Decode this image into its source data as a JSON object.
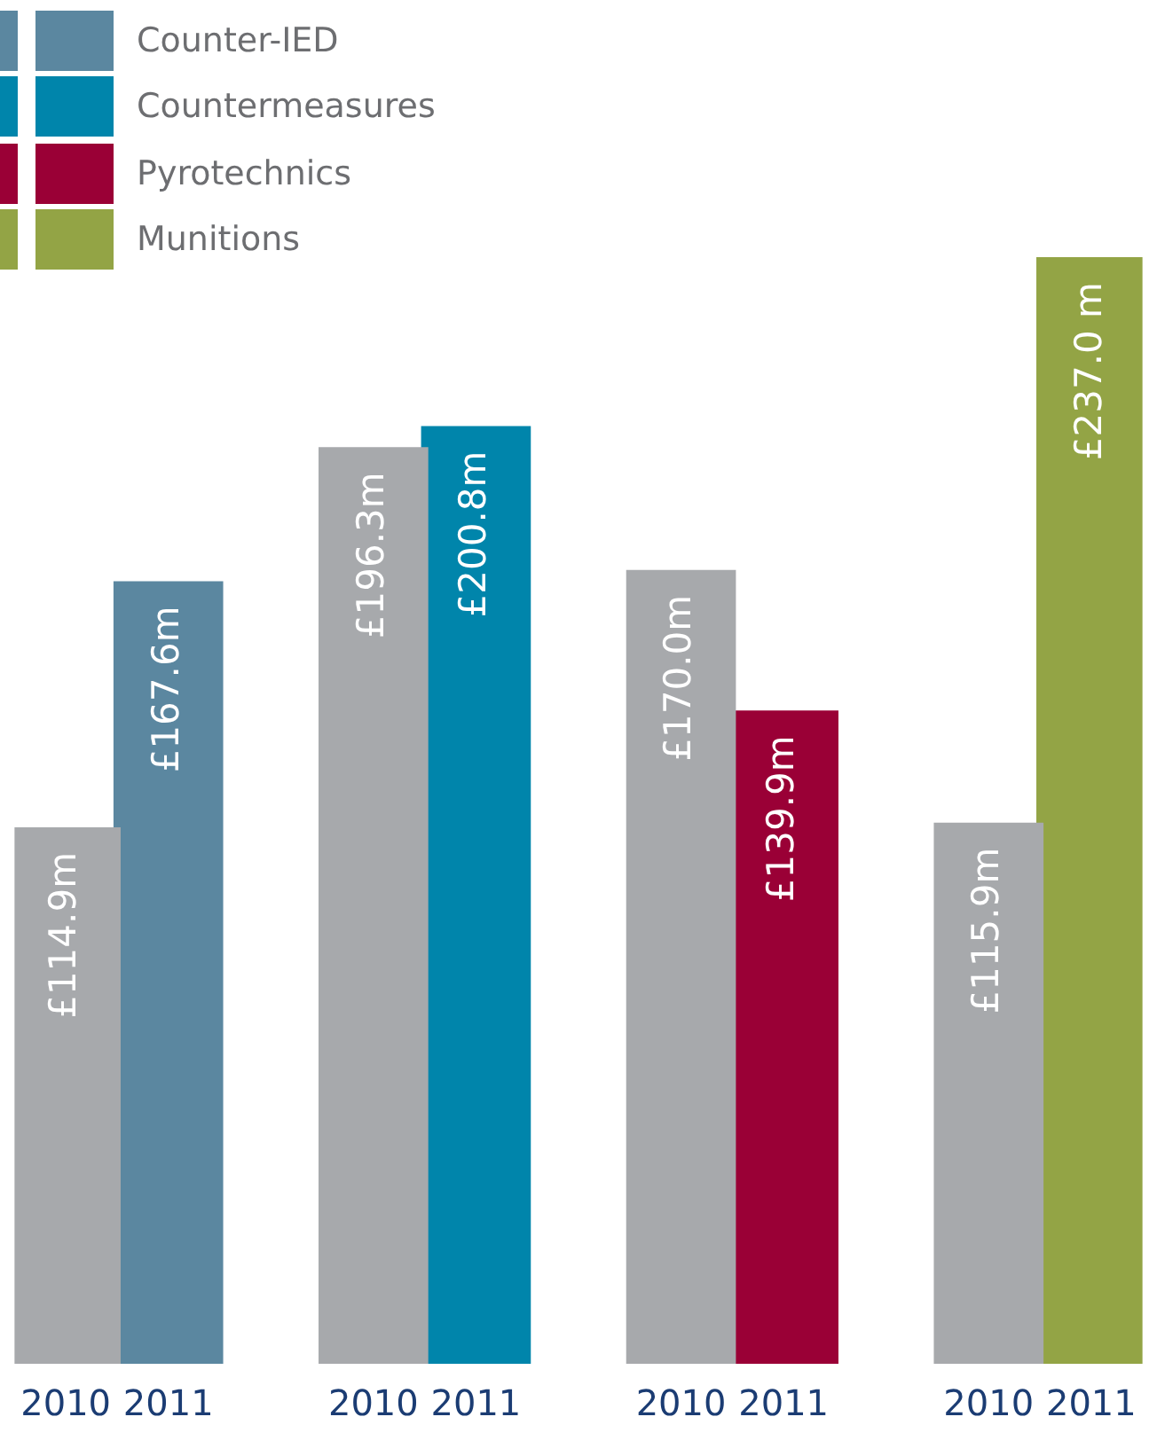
{
  "chart_data": {
    "type": "bar",
    "stacked": true,
    "categories": [
      "2010",
      "2011",
      null,
      "2010",
      "2011",
      null,
      "2010",
      "2011",
      null,
      "2010",
      "2011"
    ],
    "tick_labels": "x",
    "grid": false,
    "legend": "top left",
    "series": [
      {
        "color": "#a7a9ac",
        "values": [
          114.9,
          null,
          null,
          196.3,
          null,
          null,
          170.0,
          null,
          null,
          115.9,
          null
        ],
        "value_labels": [
          "£114.9m",
          null,
          null,
          "£196.3m",
          null,
          null,
          "£170.0m",
          null,
          null,
          "£115.9m",
          null
        ]
      },
      {
        "name": "Counter-IED",
        "color": "#5b87a0",
        "values": [
          null,
          167.6,
          null,
          null,
          null,
          null,
          null,
          null,
          null,
          null,
          null
        ],
        "value_labels": [
          null,
          "£167.6m",
          null,
          null,
          null,
          null,
          null,
          null,
          null,
          null,
          null
        ]
      },
      {
        "name": "Countermeasures",
        "color": "#0085ab",
        "values": [
          null,
          null,
          null,
          null,
          200.8,
          null,
          null,
          null,
          null,
          null,
          null
        ],
        "value_labels": [
          null,
          null,
          null,
          null,
          "£200.8m",
          null,
          null,
          null,
          null,
          null,
          null
        ]
      },
      {
        "name": "Pyrotechnics",
        "color": "#9a0036",
        "values": [
          null,
          null,
          null,
          null,
          null,
          null,
          null,
          139.9,
          null,
          null,
          null
        ],
        "value_labels": [
          null,
          null,
          null,
          null,
          null,
          null,
          null,
          "£139.9m",
          null,
          null,
          null
        ]
      },
      {
        "name": "Munitions",
        "color": "#93a445",
        "values": [
          null,
          null,
          null,
          null,
          null,
          null,
          null,
          null,
          null,
          null,
          237.0
        ],
        "value_labels": [
          null,
          null,
          null,
          null,
          null,
          null,
          null,
          null,
          null,
          null,
          "£237.0 m"
        ]
      }
    ]
  }
}
